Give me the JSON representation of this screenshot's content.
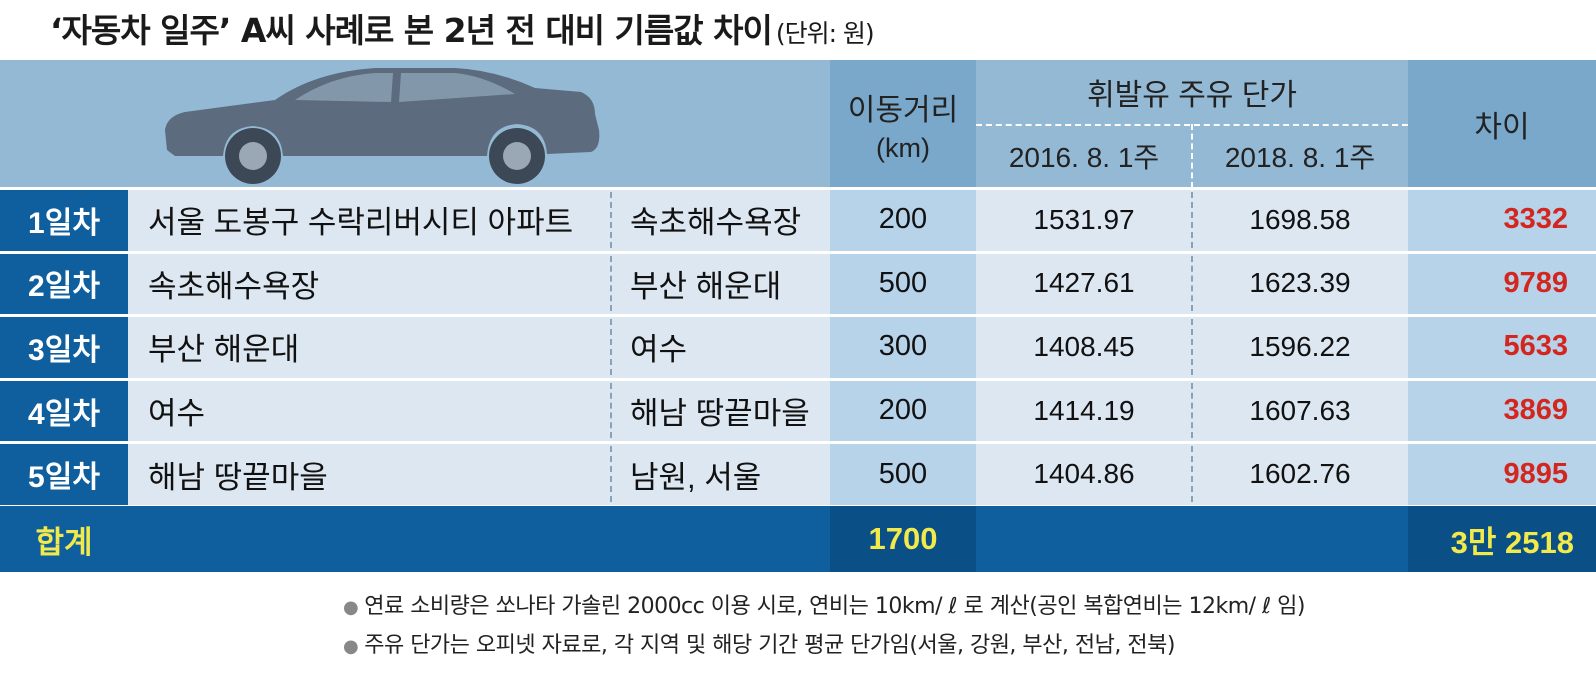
{
  "title": {
    "main": "‘자동차 일주’ A씨 사례로 본 2년 전 대비 기름값 차이",
    "unit": "(단위: 원)"
  },
  "chart_data": {
    "type": "table",
    "headers": {
      "distance": "이동거리",
      "distance_unit": "(km)",
      "price_group": "휘발유 주유 단가",
      "price_2016": "2016. 8. 1주",
      "price_2018": "2018. 8. 1주",
      "diff": "차이"
    },
    "rows": [
      {
        "day": "1일차",
        "from": "서울 도봉구 수락리버시티 아파트",
        "to": "속초해수욕장",
        "distance": "200",
        "p2016": "1531.97",
        "p2018": "1698.58",
        "diff": "3332"
      },
      {
        "day": "2일차",
        "from": "속초해수욕장",
        "to": "부산 해운대",
        "distance": "500",
        "p2016": "1427.61",
        "p2018": "1623.39",
        "diff": "9789"
      },
      {
        "day": "3일차",
        "from": "부산 해운대",
        "to": "여수",
        "distance": "300",
        "p2016": "1408.45",
        "p2018": "1596.22",
        "diff": "5633"
      },
      {
        "day": "4일차",
        "from": "여수",
        "to": "해남 땅끝마을",
        "distance": "200",
        "p2016": "1414.19",
        "p2018": "1607.63",
        "diff": "3869"
      },
      {
        "day": "5일차",
        "from": "해남 땅끝마을",
        "to": "남원, 서울",
        "distance": "500",
        "p2016": "1404.86",
        "p2018": "1602.76",
        "diff": "9895"
      }
    ],
    "total": {
      "label": "합계",
      "distance": "1700",
      "diff": "3만 2518"
    }
  },
  "notes": [
    "연료 소비량은 쏘나타 가솔린 2000cc 이용 시로, 연비는 10km/ ℓ 로 계산(공인 복합연비는 12km/ ℓ 임)",
    "주유 단가는 오피넷 자료로, 각 지역 및 해당 기간 평균 단가임(서울, 강원, 부산, 전남, 전북)"
  ],
  "colors": {
    "header_bg": "#94b9d4",
    "day_bg": "#0f5f9e",
    "route_bg": "#dde7f1",
    "dist_bg": "#b7d3ea",
    "diff_text": "#d3261f",
    "total_text": "#f1ea4a"
  },
  "icons": {
    "car": "car-icon"
  }
}
